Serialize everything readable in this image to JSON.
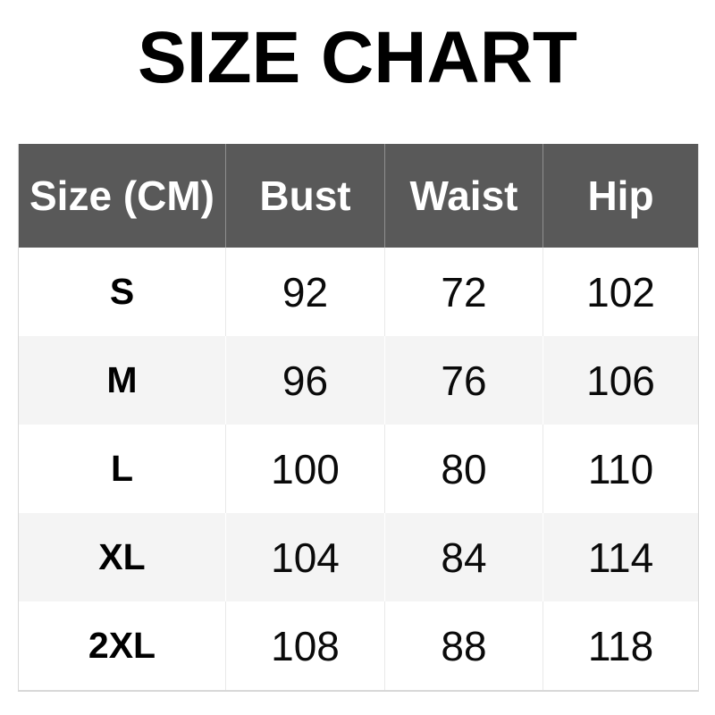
{
  "title": "SIZE CHART",
  "chart_data": {
    "type": "table",
    "title": "SIZE CHART",
    "columns": [
      "Size (CM)",
      "Bust",
      "Waist",
      "Hip"
    ],
    "rows": [
      [
        "S",
        92,
        72,
        102
      ],
      [
        "M",
        96,
        76,
        106
      ],
      [
        "L",
        100,
        80,
        110
      ],
      [
        "XL",
        104,
        84,
        114
      ],
      [
        "2XL",
        108,
        88,
        118
      ]
    ]
  },
  "colors": {
    "header_bg": "#595959",
    "header_text": "#ffffff",
    "alt_row_bg": "#f4f4f4",
    "grid_line": "#e8e8e8",
    "outer_border": "#d8d8d8",
    "title_text": "#000000"
  }
}
